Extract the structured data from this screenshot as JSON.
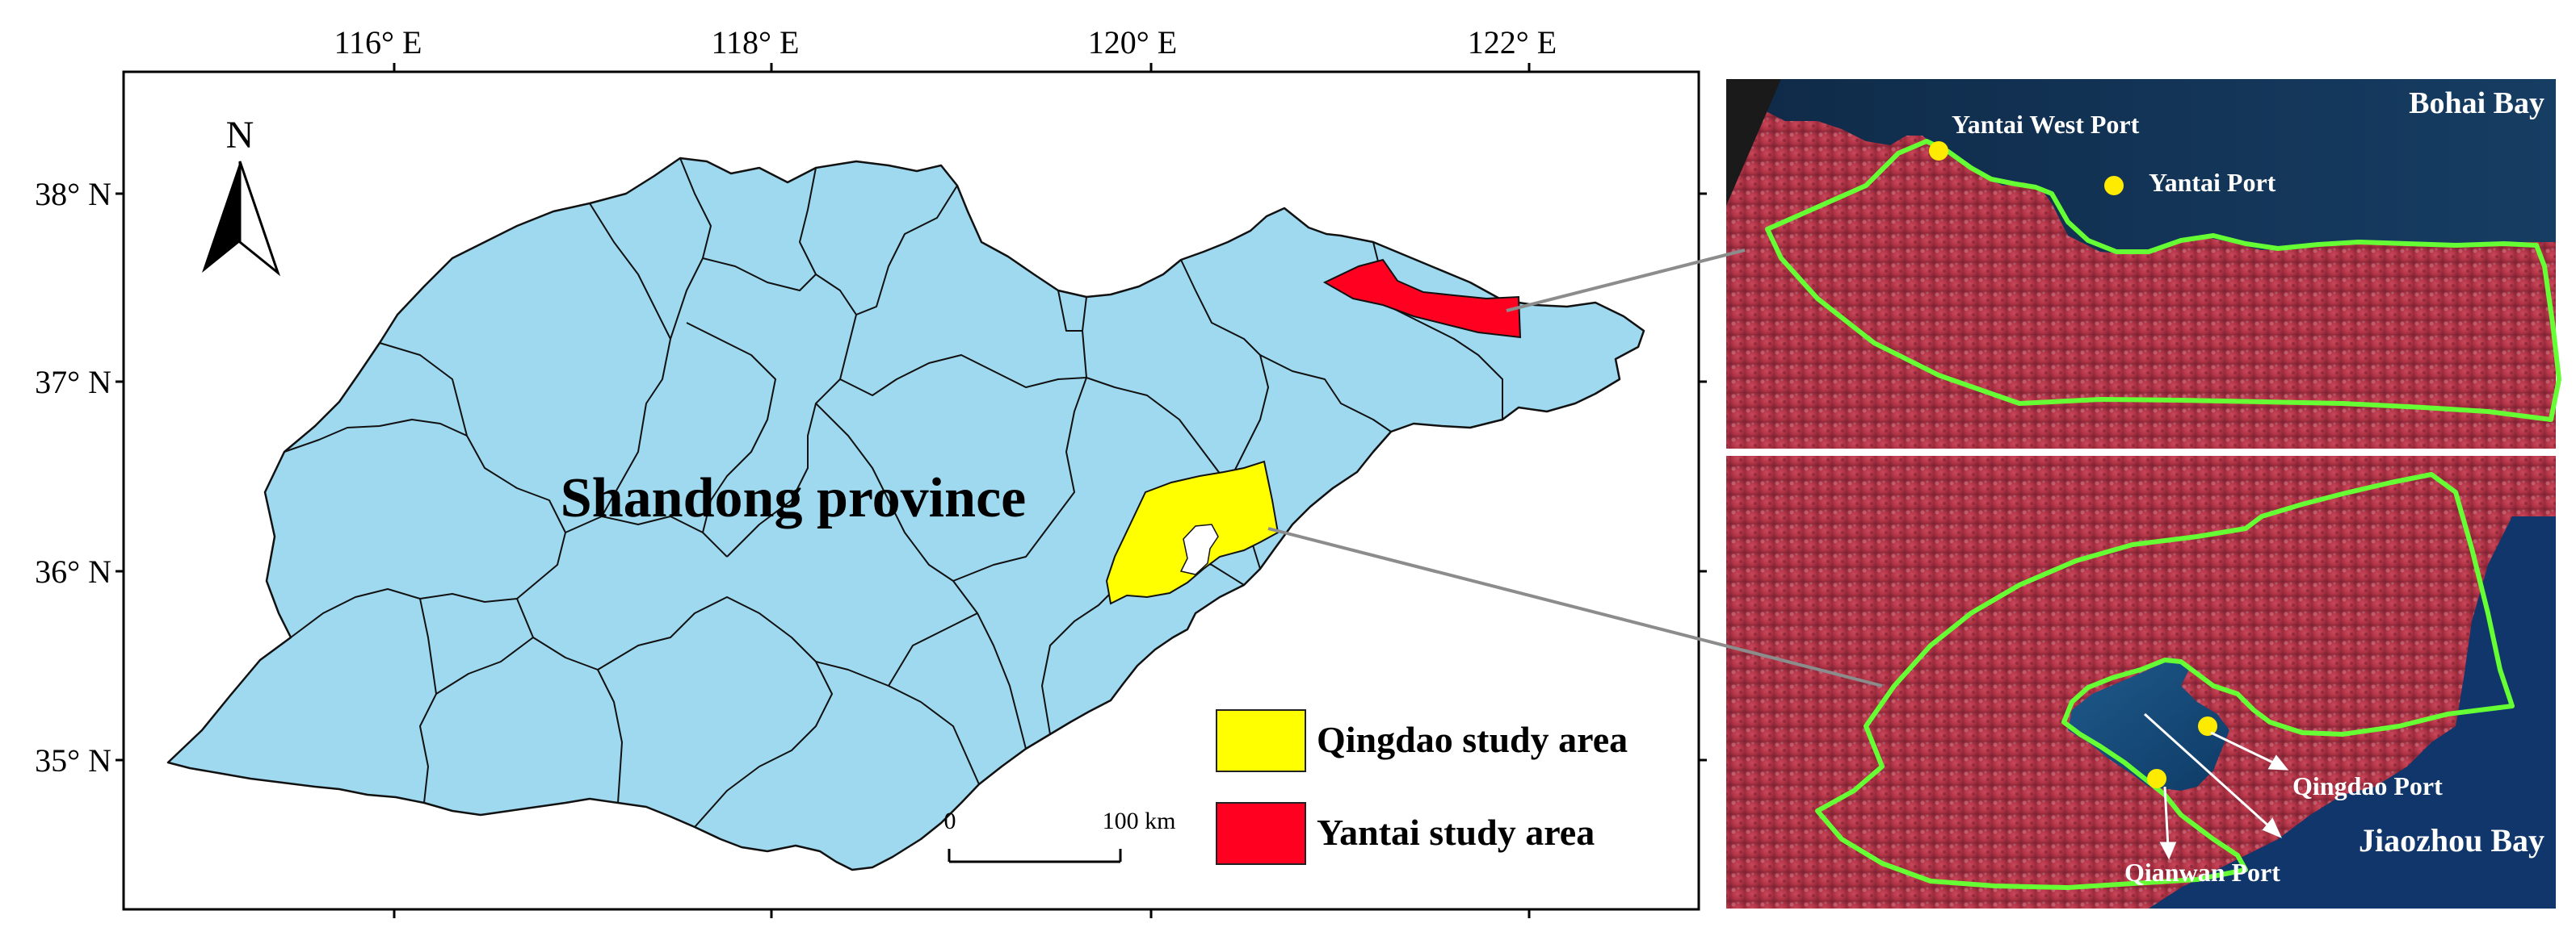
{
  "map": {
    "longitude_ticks": [
      "116° E",
      "118° E",
      "120° E",
      "122° E"
    ],
    "latitude_ticks": [
      "38° N",
      "37° N",
      "36° N",
      "35° N"
    ],
    "north_arrow_label": "N",
    "province_label": "Shandong province",
    "scale_bar": {
      "start_label": "0",
      "end_label": "100 km"
    },
    "legend": [
      {
        "label": "Qingdao study area",
        "color": "#ffff00"
      },
      {
        "label": "Yantai study area",
        "color": "#ff0020"
      }
    ],
    "colors": {
      "province_fill": "#9fd9ef",
      "boundary_outline": "#66ff33",
      "port_marker": "#ffeb00",
      "leader_line": "#8c8c8c"
    }
  },
  "insets": {
    "yantai": {
      "region_label": "Bohai Bay",
      "ports": [
        "Yantai West Port",
        "Yantai Port"
      ]
    },
    "qingdao": {
      "region_label": "Jiaozhou Bay",
      "ports": [
        "Qingdao Port",
        "Qianwan Port"
      ]
    }
  }
}
